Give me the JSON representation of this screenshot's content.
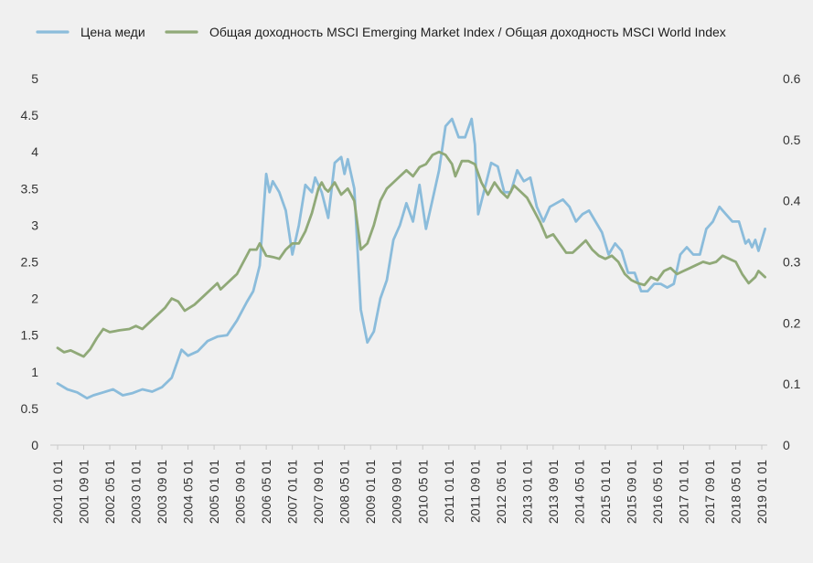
{
  "chart_data": {
    "type": "line",
    "title": "",
    "xlabel": "",
    "ylabel": "",
    "y2label": "",
    "grid": false,
    "legend_position": "top-left",
    "xlim": [
      "2001-01",
      "2019-01"
    ],
    "ylim": [
      0,
      5
    ],
    "y2lim": [
      0,
      0.6
    ],
    "y_ticks": [
      "0",
      "0.5",
      "1",
      "1.5",
      "2",
      "2.5",
      "3",
      "3.5",
      "4",
      "4.5",
      "5"
    ],
    "y2_ticks": [
      "0",
      "0.1",
      "0.2",
      "0.3",
      "0.4",
      "0.5",
      "0.6"
    ],
    "x_ticks": [
      "2001 01 01",
      "2001 09 01",
      "2002 05 01",
      "2003 01 01",
      "2003 09 01",
      "2004 05 01",
      "2005 01 01",
      "2005 09 01",
      "2006 05 01",
      "2007 01 01",
      "2007 09 01",
      "2008 05 01",
      "2009 01 01",
      "2009 09 01",
      "2010 05 01",
      "2011 01 01",
      "2011 09 01",
      "2012 05 01",
      "2013 01 01",
      "2013 09 01",
      "2014 05 01",
      "2015 01 01",
      "2015 09 01",
      "2016 05 01",
      "2017 01 01",
      "2017 09 01",
      "2018 05 01",
      "2019 01 01"
    ],
    "series": [
      {
        "name": "Цена меди",
        "axis": "left",
        "color": "#8bbcdb",
        "points": [
          [
            "2001-01",
            0.84
          ],
          [
            "2001-04",
            0.76
          ],
          [
            "2001-07",
            0.72
          ],
          [
            "2001-10",
            0.64
          ],
          [
            "2001-12",
            0.68
          ],
          [
            "2002-03",
            0.72
          ],
          [
            "2002-06",
            0.76
          ],
          [
            "2002-09",
            0.68
          ],
          [
            "2002-12",
            0.71
          ],
          [
            "2003-03",
            0.76
          ],
          [
            "2003-06",
            0.73
          ],
          [
            "2003-09",
            0.79
          ],
          [
            "2003-12",
            0.92
          ],
          [
            "2004-03",
            1.3
          ],
          [
            "2004-05",
            1.22
          ],
          [
            "2004-08",
            1.28
          ],
          [
            "2004-11",
            1.42
          ],
          [
            "2005-02",
            1.48
          ],
          [
            "2005-05",
            1.5
          ],
          [
            "2005-08",
            1.7
          ],
          [
            "2005-11",
            1.95
          ],
          [
            "2006-01",
            2.1
          ],
          [
            "2006-03",
            2.45
          ],
          [
            "2006-05",
            3.7
          ],
          [
            "2006-06",
            3.45
          ],
          [
            "2006-07",
            3.6
          ],
          [
            "2006-09",
            3.45
          ],
          [
            "2006-11",
            3.2
          ],
          [
            "2007-01",
            2.6
          ],
          [
            "2007-03",
            3.0
          ],
          [
            "2007-05",
            3.55
          ],
          [
            "2007-07",
            3.45
          ],
          [
            "2007-08",
            3.65
          ],
          [
            "2007-10",
            3.45
          ],
          [
            "2007-12",
            3.1
          ],
          [
            "2008-02",
            3.85
          ],
          [
            "2008-04",
            3.93
          ],
          [
            "2008-05",
            3.7
          ],
          [
            "2008-06",
            3.9
          ],
          [
            "2008-08",
            3.5
          ],
          [
            "2008-10",
            1.85
          ],
          [
            "2008-12",
            1.4
          ],
          [
            "2009-02",
            1.55
          ],
          [
            "2009-04",
            2.0
          ],
          [
            "2009-06",
            2.25
          ],
          [
            "2009-08",
            2.8
          ],
          [
            "2009-10",
            3.0
          ],
          [
            "2009-12",
            3.3
          ],
          [
            "2010-02",
            3.05
          ],
          [
            "2010-04",
            3.55
          ],
          [
            "2010-06",
            2.95
          ],
          [
            "2010-08",
            3.35
          ],
          [
            "2010-10",
            3.75
          ],
          [
            "2010-12",
            4.35
          ],
          [
            "2011-02",
            4.45
          ],
          [
            "2011-04",
            4.2
          ],
          [
            "2011-06",
            4.2
          ],
          [
            "2011-08",
            4.45
          ],
          [
            "2011-09",
            4.1
          ],
          [
            "2011-10",
            3.15
          ],
          [
            "2011-12",
            3.5
          ],
          [
            "2012-02",
            3.85
          ],
          [
            "2012-04",
            3.8
          ],
          [
            "2012-06",
            3.45
          ],
          [
            "2012-08",
            3.45
          ],
          [
            "2012-10",
            3.75
          ],
          [
            "2012-12",
            3.6
          ],
          [
            "2013-02",
            3.65
          ],
          [
            "2013-04",
            3.25
          ],
          [
            "2013-06",
            3.05
          ],
          [
            "2013-08",
            3.25
          ],
          [
            "2013-10",
            3.3
          ],
          [
            "2013-12",
            3.35
          ],
          [
            "2014-02",
            3.25
          ],
          [
            "2014-04",
            3.05
          ],
          [
            "2014-06",
            3.15
          ],
          [
            "2014-08",
            3.2
          ],
          [
            "2014-10",
            3.05
          ],
          [
            "2014-12",
            2.9
          ],
          [
            "2015-02",
            2.6
          ],
          [
            "2015-04",
            2.75
          ],
          [
            "2015-06",
            2.65
          ],
          [
            "2015-08",
            2.35
          ],
          [
            "2015-10",
            2.35
          ],
          [
            "2015-12",
            2.1
          ],
          [
            "2016-02",
            2.1
          ],
          [
            "2016-04",
            2.2
          ],
          [
            "2016-06",
            2.2
          ],
          [
            "2016-08",
            2.15
          ],
          [
            "2016-10",
            2.2
          ],
          [
            "2016-12",
            2.6
          ],
          [
            "2017-02",
            2.7
          ],
          [
            "2017-04",
            2.6
          ],
          [
            "2017-06",
            2.6
          ],
          [
            "2017-08",
            2.95
          ],
          [
            "2017-10",
            3.05
          ],
          [
            "2017-12",
            3.25
          ],
          [
            "2018-02",
            3.15
          ],
          [
            "2018-04",
            3.05
          ],
          [
            "2018-06",
            3.05
          ],
          [
            "2018-08",
            2.75
          ],
          [
            "2018-09",
            2.8
          ],
          [
            "2018-10",
            2.7
          ],
          [
            "2018-11",
            2.8
          ],
          [
            "2018-12",
            2.65
          ],
          [
            "2019-02",
            2.95
          ]
        ]
      },
      {
        "name": "Общая доходность MSCI Emerging Market Index / Общая доходность MSCI World Index",
        "axis": "right",
        "color": "#90a978",
        "points": [
          [
            "2001-01",
            0.159
          ],
          [
            "2001-03",
            0.152
          ],
          [
            "2001-05",
            0.155
          ],
          [
            "2001-07",
            0.15
          ],
          [
            "2001-09",
            0.145
          ],
          [
            "2001-11",
            0.157
          ],
          [
            "2002-01",
            0.175
          ],
          [
            "2002-03",
            0.19
          ],
          [
            "2002-05",
            0.185
          ],
          [
            "2002-08",
            0.188
          ],
          [
            "2002-11",
            0.19
          ],
          [
            "2003-01",
            0.195
          ],
          [
            "2003-03",
            0.19
          ],
          [
            "2003-05",
            0.2
          ],
          [
            "2003-08",
            0.215
          ],
          [
            "2003-10",
            0.225
          ],
          [
            "2003-12",
            0.24
          ],
          [
            "2004-02",
            0.235
          ],
          [
            "2004-04",
            0.22
          ],
          [
            "2004-07",
            0.23
          ],
          [
            "2004-10",
            0.245
          ],
          [
            "2004-12",
            0.255
          ],
          [
            "2005-02",
            0.265
          ],
          [
            "2005-03",
            0.255
          ],
          [
            "2005-05",
            0.265
          ],
          [
            "2005-07",
            0.275
          ],
          [
            "2005-08",
            0.28
          ],
          [
            "2005-10",
            0.3
          ],
          [
            "2005-12",
            0.32
          ],
          [
            "2006-02",
            0.32
          ],
          [
            "2006-03",
            0.33
          ],
          [
            "2006-05",
            0.31
          ],
          [
            "2006-07",
            0.308
          ],
          [
            "2006-09",
            0.305
          ],
          [
            "2006-11",
            0.32
          ],
          [
            "2007-01",
            0.33
          ],
          [
            "2007-03",
            0.33
          ],
          [
            "2007-05",
            0.35
          ],
          [
            "2007-07",
            0.38
          ],
          [
            "2007-09",
            0.42
          ],
          [
            "2007-10",
            0.43
          ],
          [
            "2007-11",
            0.42
          ],
          [
            "2007-12",
            0.415
          ],
          [
            "2008-02",
            0.43
          ],
          [
            "2008-04",
            0.41
          ],
          [
            "2008-06",
            0.42
          ],
          [
            "2008-08",
            0.4
          ],
          [
            "2008-10",
            0.32
          ],
          [
            "2008-12",
            0.33
          ],
          [
            "2009-02",
            0.36
          ],
          [
            "2009-04",
            0.4
          ],
          [
            "2009-06",
            0.42
          ],
          [
            "2009-08",
            0.43
          ],
          [
            "2009-10",
            0.44
          ],
          [
            "2009-12",
            0.45
          ],
          [
            "2010-02",
            0.44
          ],
          [
            "2010-04",
            0.455
          ],
          [
            "2010-06",
            0.46
          ],
          [
            "2010-08",
            0.475
          ],
          [
            "2010-10",
            0.48
          ],
          [
            "2010-12",
            0.475
          ],
          [
            "2011-02",
            0.46
          ],
          [
            "2011-03",
            0.44
          ],
          [
            "2011-05",
            0.465
          ],
          [
            "2011-07",
            0.465
          ],
          [
            "2011-09",
            0.46
          ],
          [
            "2011-11",
            0.43
          ],
          [
            "2012-01",
            0.41
          ],
          [
            "2012-03",
            0.43
          ],
          [
            "2012-05",
            0.415
          ],
          [
            "2012-07",
            0.405
          ],
          [
            "2012-09",
            0.425
          ],
          [
            "2012-11",
            0.415
          ],
          [
            "2013-01",
            0.405
          ],
          [
            "2013-03",
            0.385
          ],
          [
            "2013-05",
            0.365
          ],
          [
            "2013-07",
            0.34
          ],
          [
            "2013-09",
            0.345
          ],
          [
            "2013-11",
            0.33
          ],
          [
            "2014-01",
            0.315
          ],
          [
            "2014-03",
            0.315
          ],
          [
            "2014-05",
            0.325
          ],
          [
            "2014-07",
            0.335
          ],
          [
            "2014-09",
            0.32
          ],
          [
            "2014-11",
            0.31
          ],
          [
            "2015-01",
            0.305
          ],
          [
            "2015-03",
            0.31
          ],
          [
            "2015-05",
            0.3
          ],
          [
            "2015-07",
            0.28
          ],
          [
            "2015-09",
            0.27
          ],
          [
            "2015-11",
            0.265
          ],
          [
            "2016-01",
            0.262
          ],
          [
            "2016-03",
            0.275
          ],
          [
            "2016-05",
            0.27
          ],
          [
            "2016-07",
            0.285
          ],
          [
            "2016-09",
            0.29
          ],
          [
            "2016-11",
            0.28
          ],
          [
            "2017-01",
            0.285
          ],
          [
            "2017-03",
            0.29
          ],
          [
            "2017-05",
            0.295
          ],
          [
            "2017-07",
            0.3
          ],
          [
            "2017-09",
            0.297
          ],
          [
            "2017-11",
            0.3
          ],
          [
            "2018-01",
            0.31
          ],
          [
            "2018-03",
            0.305
          ],
          [
            "2018-05",
            0.3
          ],
          [
            "2018-07",
            0.28
          ],
          [
            "2018-09",
            0.265
          ],
          [
            "2018-11",
            0.275
          ],
          [
            "2018-12",
            0.285
          ],
          [
            "2019-02",
            0.275
          ]
        ]
      }
    ]
  },
  "legend": {
    "items": [
      {
        "label": "Цена меди",
        "color": "#8bbcdb"
      },
      {
        "label": "Общая доходность MSCI Emerging Market Index / Общая доходность MSCI World Index",
        "color": "#90a978"
      }
    ]
  },
  "colors": {
    "background": "#f0f0f0",
    "axis": "#c8c8c8",
    "tick_text": "#333333"
  }
}
